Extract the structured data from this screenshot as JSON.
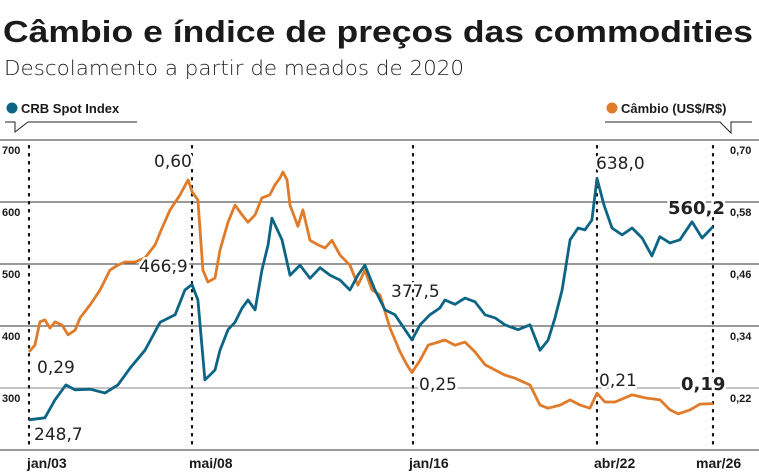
{
  "colors": {
    "crb": "#0c6585",
    "cambio": "#e07b2a",
    "grid": "#333333",
    "axis": "#9a9a9a"
  },
  "chart_data": {
    "type": "line",
    "title": "Câmbio e índice de preços das commodities",
    "subtitle": "Descolamento a partir de meados de 2020",
    "xlabel": "",
    "x_ticks": [
      "jan/03",
      "mai/08",
      "jan/16",
      "abr/22",
      "mar/26"
    ],
    "x_tick_years": [
      2003.0,
      2008.33,
      2016.0,
      2022.25,
      2026.17
    ],
    "y_left": {
      "label": "CRB Spot Index",
      "ticks": [
        "700",
        "600",
        "500",
        "400",
        "300"
      ],
      "range": [
        200,
        700
      ]
    },
    "y_right": {
      "label": "Câmbio (US$/R$)",
      "ticks": [
        "0,70",
        "0,58",
        "0,46",
        "0,34",
        "0,22"
      ],
      "range": [
        0.1,
        0.7
      ]
    },
    "grid": true,
    "legend": [
      {
        "name": "CRB Spot Index",
        "placement": "top-left",
        "icon": "circle"
      },
      {
        "name": "Câmbio (US$/R$)",
        "placement": "top-right",
        "icon": "circle"
      }
    ],
    "series": [
      {
        "name": "CRB Spot Index",
        "axis": "left",
        "x": [
          2003.0,
          2003.54,
          2003.88,
          2004.25,
          2004.56,
          2005.07,
          2005.57,
          2006.01,
          2006.42,
          2006.93,
          2007.44,
          2007.95,
          2008.28,
          2008.52,
          2008.72,
          2008.96,
          2009.13,
          2009.3,
          2009.47,
          2009.74,
          2009.98,
          2010.22,
          2010.42,
          2010.66,
          2010.89,
          2011.1,
          2011.23,
          2011.57,
          2011.84,
          2012.18,
          2012.52,
          2012.86,
          2013.2,
          2013.54,
          2013.87,
          2014.14,
          2014.38,
          2014.72,
          2015.06,
          2015.4,
          2015.97,
          2016.25,
          2016.58,
          2016.92,
          2017.09,
          2017.43,
          2017.77,
          2018.11,
          2018.45,
          2018.79,
          2019.12,
          2019.57,
          2019.97,
          2020.31,
          2020.58,
          2020.82,
          2021.06,
          2021.33,
          2021.6,
          2021.83,
          2022.07,
          2022.24,
          2022.48,
          2022.75,
          2023.09,
          2023.43,
          2023.77,
          2024.1,
          2024.37,
          2024.71,
          2025.05,
          2025.46,
          2025.8,
          2026.17
        ],
        "values": [
          248.7,
          252,
          281,
          305,
          297,
          298,
          292,
          305,
          332,
          361,
          406,
          418,
          458,
          466.9,
          442,
          313,
          321,
          329,
          361,
          394,
          406,
          429,
          442,
          426,
          490,
          531,
          574,
          539,
          482,
          498,
          477,
          494,
          482,
          474,
          458,
          482,
          498,
          458,
          426,
          418,
          377.5,
          402,
          418,
          429,
          442,
          435,
          445,
          439,
          418,
          413,
          402,
          394,
          402,
          361,
          377,
          413,
          458,
          539,
          558,
          555,
          571,
          638.0,
          595,
          558,
          547,
          558,
          542,
          513,
          544,
          534,
          539,
          568,
          542,
          560.2
        ]
      },
      {
        "name": "Câmbio (US$/R$)",
        "axis": "right",
        "x": [
          2003.0,
          2003.2,
          2003.37,
          2003.54,
          2003.71,
          2003.88,
          2004.12,
          2004.32,
          2004.56,
          2004.73,
          2005.07,
          2005.41,
          2005.74,
          2006.01,
          2006.25,
          2006.59,
          2006.93,
          2007.27,
          2007.51,
          2007.78,
          2008.12,
          2008.39,
          2008.52,
          2008.72,
          2008.89,
          2009.06,
          2009.3,
          2009.47,
          2009.74,
          2009.98,
          2010.22,
          2010.42,
          2010.66,
          2010.89,
          2011.16,
          2011.33,
          2011.5,
          2011.6,
          2011.74,
          2011.84,
          2012.11,
          2012.28,
          2012.52,
          2012.79,
          2013.03,
          2013.26,
          2013.54,
          2013.87,
          2014.14,
          2014.38,
          2014.62,
          2014.89,
          2015.23,
          2015.57,
          2015.8,
          2015.97,
          2016.25,
          2016.52,
          2016.75,
          2017.09,
          2017.43,
          2017.77,
          2018.11,
          2018.45,
          2018.79,
          2019.12,
          2019.46,
          2019.97,
          2020.31,
          2020.58,
          2020.99,
          2021.33,
          2021.67,
          2022.0,
          2022.24,
          2022.51,
          2022.85,
          2023.43,
          2023.87,
          2024.38,
          2024.71,
          2024.99,
          2025.4,
          2025.73,
          2026.17
        ],
        "values": [
          0.29,
          0.303,
          0.348,
          0.352,
          0.336,
          0.348,
          0.342,
          0.323,
          0.332,
          0.356,
          0.381,
          0.41,
          0.448,
          0.458,
          0.464,
          0.464,
          0.472,
          0.497,
          0.53,
          0.565,
          0.594,
          0.623,
          0.6,
          0.584,
          0.448,
          0.425,
          0.433,
          0.487,
          0.541,
          0.574,
          0.555,
          0.541,
          0.555,
          0.588,
          0.594,
          0.613,
          0.626,
          0.638,
          0.623,
          0.574,
          0.533,
          0.565,
          0.506,
          0.497,
          0.491,
          0.506,
          0.477,
          0.458,
          0.419,
          0.448,
          0.41,
          0.4,
          0.336,
          0.29,
          0.265,
          0.25,
          0.274,
          0.303,
          0.307,
          0.313,
          0.303,
          0.309,
          0.29,
          0.265,
          0.255,
          0.245,
          0.239,
          0.226,
          0.187,
          0.181,
          0.187,
          0.197,
          0.187,
          0.181,
          0.21,
          0.193,
          0.193,
          0.207,
          0.201,
          0.197,
          0.178,
          0.17,
          0.178,
          0.189,
          0.19
        ]
      }
    ],
    "annotations": [
      {
        "id": "cambio_start",
        "text": "0,29",
        "series": "Câmbio (US$/R$)",
        "x": 2003.0,
        "value": 0.29
      },
      {
        "id": "cambio_2008",
        "text": "0,60",
        "series": "Câmbio (US$/R$)",
        "x": 2008.52,
        "value": 0.6
      },
      {
        "id": "cambio_2016",
        "text": "0,25",
        "series": "Câmbio (US$/R$)",
        "x": 2015.97,
        "value": 0.25
      },
      {
        "id": "cambio_2022",
        "text": "0,21",
        "series": "Câmbio (US$/R$)",
        "x": 2022.24,
        "value": 0.21
      },
      {
        "id": "cambio_last",
        "text": "0,19",
        "series": "Câmbio (US$/R$)",
        "x": 2026.17,
        "value": 0.19
      },
      {
        "id": "crb_start",
        "text": "248,7",
        "series": "CRB Spot Index",
        "x": 2003.0,
        "value": 248.7
      },
      {
        "id": "crb_2008",
        "text": "466,9",
        "series": "CRB Spot Index",
        "x": 2008.52,
        "value": 466.9
      },
      {
        "id": "crb_2016",
        "text": "377,5",
        "series": "CRB Spot Index",
        "x": 2015.97,
        "value": 377.5
      },
      {
        "id": "crb_2022",
        "text": "638,0",
        "series": "CRB Spot Index",
        "x": 2022.24,
        "value": 638.0
      },
      {
        "id": "crb_last",
        "text": "560,2",
        "series": "CRB Spot Index",
        "x": 2026.17,
        "value": 560.2
      }
    ]
  }
}
